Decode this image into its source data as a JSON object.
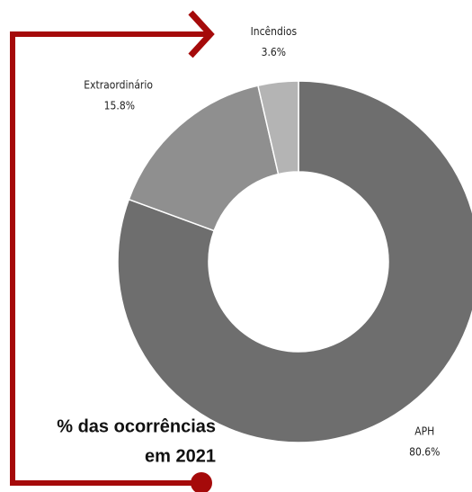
{
  "chart_data": {
    "type": "pie",
    "donut": true,
    "title_lines": [
      "% das ocorrências",
      "em 2021"
    ],
    "categories": [
      "APH",
      "Extraordinário",
      "Incêndios"
    ],
    "values": [
      80.6,
      15.8,
      3.6
    ],
    "value_labels": [
      "80.6%",
      "15.8%",
      "3.6%"
    ],
    "colors": [
      "#6e6e6e",
      "#8f8f8f",
      "#b4b4b4"
    ]
  }
}
